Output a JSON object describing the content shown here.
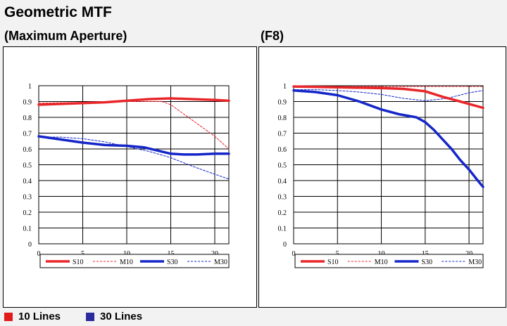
{
  "title": "Geometric MTF",
  "colors": {
    "red": "#e8262a",
    "blue": "#1426c8",
    "swatch_red": "#e21a1a",
    "swatch_blue": "#2b2b9e"
  },
  "footer": {
    "items": [
      {
        "label": "10 Lines",
        "color": "#e21a1a"
      },
      {
        "label": "30  Lines",
        "color": "#2b2b9e"
      }
    ]
  },
  "chart_data": [
    {
      "type": "line",
      "subtitle": "(Maximum Aperture)",
      "xlim": [
        0,
        21.6
      ],
      "ylim": [
        0,
        1
      ],
      "xticks": [
        "0",
        "5",
        "10",
        "15",
        "20"
      ],
      "yticks": [
        "0",
        "0.1",
        "0.2",
        "0.3",
        "0.4",
        "0.5",
        "0.6",
        "0.7",
        "0.8",
        "0.9",
        "1"
      ],
      "grid": true,
      "legend_position": "bottom",
      "series": [
        {
          "name": "S10",
          "color": "#e8262a",
          "style": "solid-thick",
          "x": [
            0,
            2.5,
            5,
            7.5,
            10,
            12.5,
            15,
            17.5,
            20,
            21.6
          ],
          "y": [
            0.88,
            0.885,
            0.89,
            0.895,
            0.905,
            0.915,
            0.92,
            0.915,
            0.91,
            0.905
          ]
        },
        {
          "name": "M10",
          "color": "#e8262a",
          "style": "dashed",
          "x": [
            0,
            5,
            10,
            14,
            15,
            16.5,
            18,
            20,
            21.6
          ],
          "y": [
            0.89,
            0.895,
            0.9,
            0.9,
            0.88,
            0.82,
            0.76,
            0.68,
            0.6
          ]
        },
        {
          "name": "S30",
          "color": "#1426c8",
          "style": "solid-thick",
          "x": [
            0,
            2.5,
            5,
            7.5,
            10,
            12,
            13.5,
            15,
            16.5,
            18,
            20,
            21.6
          ],
          "y": [
            0.68,
            0.66,
            0.64,
            0.625,
            0.62,
            0.61,
            0.59,
            0.57,
            0.565,
            0.565,
            0.57,
            0.57
          ]
        },
        {
          "name": "M30",
          "color": "#1426c8",
          "style": "dashed",
          "x": [
            0,
            2.5,
            5,
            7.5,
            10,
            12.5,
            15,
            17.5,
            20,
            21.6
          ],
          "y": [
            0.675,
            0.675,
            0.665,
            0.645,
            0.615,
            0.585,
            0.545,
            0.49,
            0.44,
            0.41
          ]
        }
      ]
    },
    {
      "type": "line",
      "subtitle": "(F8)",
      "xlim": [
        0,
        21.6
      ],
      "ylim": [
        0,
        1
      ],
      "xticks": [
        "0",
        "5",
        "10",
        "15",
        "20"
      ],
      "yticks": [
        "0",
        "0.1",
        "0.2",
        "0.3",
        "0.4",
        "0.5",
        "0.6",
        "0.7",
        "0.8",
        "0.9",
        "1"
      ],
      "grid": true,
      "legend_position": "bottom",
      "series": [
        {
          "name": "S10",
          "color": "#e8262a",
          "style": "solid-thick",
          "x": [
            0,
            5,
            10,
            12.5,
            15,
            17,
            19,
            21.6
          ],
          "y": [
            0.995,
            0.99,
            0.985,
            0.98,
            0.965,
            0.93,
            0.9,
            0.86
          ]
        },
        {
          "name": "M10",
          "color": "#e8262a",
          "style": "dashed",
          "x": [
            0,
            5,
            10,
            15,
            20,
            21.6
          ],
          "y": [
            0.995,
            0.995,
            0.995,
            0.995,
            0.995,
            0.995
          ]
        },
        {
          "name": "S30",
          "color": "#1426c8",
          "style": "solid-thick",
          "x": [
            0,
            2.5,
            5,
            7.5,
            10,
            12,
            14,
            15,
            16,
            17,
            18,
            19,
            20,
            21,
            21.6
          ],
          "y": [
            0.97,
            0.96,
            0.94,
            0.9,
            0.85,
            0.82,
            0.8,
            0.77,
            0.72,
            0.66,
            0.6,
            0.53,
            0.47,
            0.4,
            0.36
          ]
        },
        {
          "name": "M30",
          "color": "#1426c8",
          "style": "dashed",
          "x": [
            0,
            2.5,
            5,
            7.5,
            10,
            12.5,
            15,
            17.5,
            20,
            21.6
          ],
          "y": [
            0.975,
            0.975,
            0.97,
            0.96,
            0.945,
            0.92,
            0.905,
            0.92,
            0.955,
            0.97
          ]
        }
      ]
    }
  ]
}
